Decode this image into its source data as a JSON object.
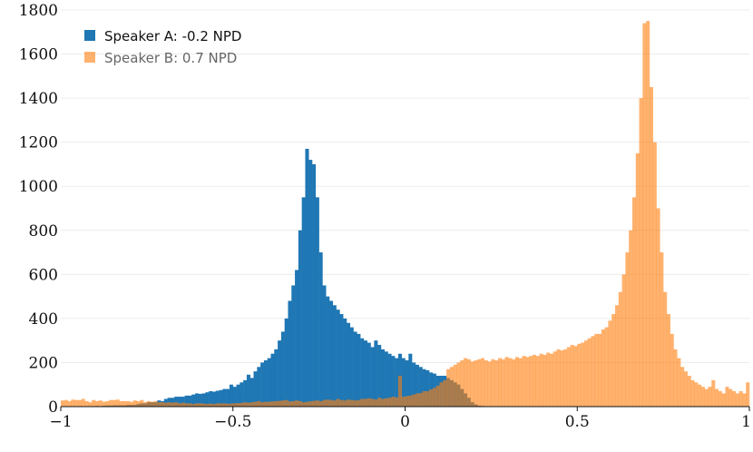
{
  "chart_data": {
    "type": "bar",
    "title": "",
    "xlabel": "",
    "ylabel": "",
    "xlim": [
      -1,
      1
    ],
    "ylim": [
      0,
      1800
    ],
    "bin_width": 0.01,
    "x_ticks": [
      -1,
      -0.5,
      0,
      0.5,
      1
    ],
    "x_tick_labels": [
      "−1",
      "−0.5",
      "0",
      "0.5",
      "1"
    ],
    "y_ticks": [
      0,
      200,
      400,
      600,
      800,
      1000,
      1200,
      1400,
      1600,
      1800
    ],
    "y_tick_labels": [
      "0",
      "200",
      "400",
      "600",
      "800",
      "1000",
      "1200",
      "1400",
      "1600",
      "1800"
    ],
    "grid": "horizontal",
    "legend_position": "top-left",
    "series": [
      {
        "name": "Speaker A: -0.2 NPD",
        "color": "#1f77b4",
        "opacity": 1.0,
        "values": [
          0,
          0,
          0,
          0,
          0,
          0,
          0,
          0,
          0,
          2,
          3,
          2,
          4,
          5,
          5,
          6,
          6,
          6,
          6,
          8,
          8,
          8,
          12,
          15,
          15,
          20,
          20,
          20,
          28,
          25,
          35,
          40,
          40,
          45,
          45,
          45,
          50,
          50,
          55,
          60,
          58,
          60,
          65,
          70,
          68,
          72,
          75,
          80,
          80,
          100,
          90,
          100,
          110,
          120,
          145,
          130,
          160,
          180,
          200,
          210,
          220,
          240,
          260,
          300,
          340,
          400,
          480,
          550,
          620,
          800,
          950,
          1170,
          1120,
          1100,
          950,
          700,
          550,
          500,
          480,
          460,
          440,
          420,
          400,
          380,
          360,
          340,
          330,
          310,
          300,
          290,
          270,
          300,
          280,
          260,
          250,
          240,
          230,
          220,
          240,
          220,
          210,
          240,
          200,
          190,
          180,
          170,
          165,
          155,
          150,
          140,
          140,
          140,
          130,
          120,
          110,
          100,
          80,
          60,
          40,
          20,
          10,
          5,
          3,
          2,
          1,
          0,
          0,
          0,
          0,
          0,
          0,
          0,
          0,
          0,
          0,
          0,
          0,
          0,
          0,
          0,
          0,
          0,
          0,
          0,
          0,
          0,
          0,
          0,
          0,
          0,
          0,
          0,
          0,
          0,
          0,
          0,
          0,
          0,
          0,
          0,
          0,
          0,
          0,
          0,
          0,
          0,
          0,
          0,
          0,
          0,
          0,
          0,
          0,
          0,
          0,
          0,
          0,
          0,
          0,
          0,
          0,
          0,
          0,
          0,
          0,
          0,
          0,
          0,
          0,
          0,
          0,
          0,
          0,
          0,
          0,
          0,
          0,
          0,
          0,
          0
        ]
      },
      {
        "name": "Speaker B: 0.7 NPD",
        "color": "#ff7f0e",
        "opacity": 0.6,
        "values": [
          28,
          30,
          25,
          32,
          30,
          30,
          35,
          25,
          20,
          30,
          25,
          28,
          22,
          25,
          30,
          30,
          32,
          25,
          25,
          25,
          22,
          28,
          25,
          30,
          20,
          25,
          22,
          25,
          20,
          20,
          18,
          20,
          18,
          20,
          15,
          18,
          15,
          15,
          12,
          15,
          15,
          14,
          12,
          14,
          12,
          15,
          14,
          15,
          13,
          14,
          15,
          16,
          17,
          20,
          18,
          20,
          22,
          25,
          20,
          22,
          22,
          24,
          25,
          26,
          28,
          30,
          24,
          25,
          28,
          25,
          20,
          22,
          24,
          26,
          28,
          25,
          30,
          32,
          30,
          28,
          35,
          30,
          28,
          32,
          30,
          28,
          30,
          35,
          35,
          38,
          35,
          32,
          40,
          35,
          38,
          40,
          45,
          42,
          140,
          45,
          48,
          50,
          55,
          60,
          62,
          70,
          70,
          78,
          85,
          95,
          110,
          120,
          170,
          180,
          190,
          200,
          210,
          220,
          215,
          205,
          210,
          215,
          220,
          210,
          205,
          215,
          210,
          220,
          215,
          225,
          220,
          215,
          225,
          220,
          230,
          225,
          230,
          235,
          230,
          240,
          235,
          245,
          240,
          250,
          260,
          255,
          260,
          270,
          280,
          275,
          285,
          290,
          300,
          310,
          320,
          330,
          330,
          350,
          360,
          390,
          420,
          460,
          520,
          600,
          700,
          800,
          950,
          1150,
          1400,
          1740,
          1750,
          1450,
          1200,
          900,
          700,
          520,
          420,
          330,
          260,
          220,
          180,
          160,
          140,
          120,
          110,
          100,
          90,
          80,
          90,
          120,
          80,
          70,
          60,
          90,
          80,
          70,
          60,
          70,
          60,
          110
        ]
      }
    ]
  }
}
